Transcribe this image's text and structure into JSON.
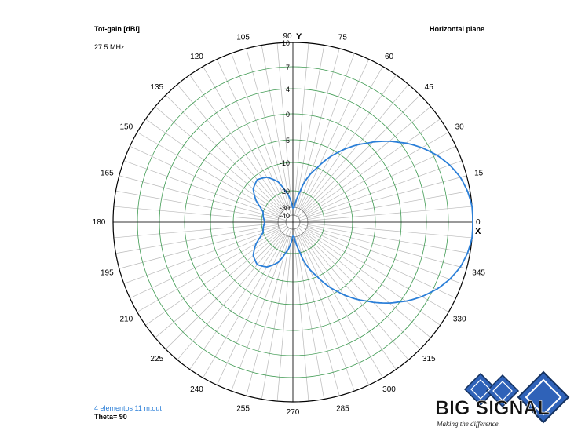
{
  "header": {
    "title": "Tot-gain [dBi]",
    "frequency": "27.5 MHz",
    "plane": "Horizontal plane"
  },
  "footer": {
    "file": "4 elementos 11 m.out",
    "theta": "Theta= 90"
  },
  "logo": {
    "text": "BIG SIGNAL",
    "tagline": "Making the difference."
  },
  "colors": {
    "grid_angle": "#b9b9b9",
    "grid_ring": "#3f9a52",
    "axis": "#000000",
    "pattern": "#2b7fd8",
    "footer_text": "#2b7fd8",
    "logo_blue": "#2f62b8"
  },
  "chart_data": {
    "type": "polar",
    "title": "Tot-gain [dBi]",
    "subtitle": "Horizontal plane",
    "frequency": "27.5 MHz",
    "axis_x_label": "X",
    "axis_y_label": "Y",
    "radial_ticks": [
      "10",
      "7",
      "4",
      "0",
      "-5",
      "-10",
      "-20",
      "-30",
      "-40"
    ],
    "angle_ticks": [
      0,
      15,
      30,
      45,
      60,
      75,
      90,
      105,
      120,
      135,
      150,
      165,
      180,
      195,
      210,
      225,
      240,
      255,
      270,
      285,
      300,
      315,
      330,
      345
    ],
    "grid": true,
    "series": [
      {
        "name": "4 elementos 11 m.out",
        "angle_deg": [
          0,
          5,
          10,
          15,
          20,
          25,
          30,
          35,
          40,
          45,
          50,
          55,
          60,
          65,
          70,
          75,
          80,
          85,
          90,
          100,
          110,
          120,
          130,
          140,
          150,
          155,
          160,
          165,
          170,
          175,
          180
        ],
        "gain_dbi": [
          10.2,
          10.0,
          9.7,
          9.2,
          8.4,
          7.4,
          6.1,
          4.6,
          2.8,
          0.8,
          -1.4,
          -3.8,
          -6.4,
          -9.4,
          -13.0,
          -17.5,
          -24.0,
          -30.0,
          -31.0,
          -22.0,
          -16.0,
          -12.8,
          -11.5,
          -12.8,
          -16.2,
          -18.3,
          -19.8,
          -20.4,
          -20.8,
          -21.5,
          -22.0
        ]
      }
    ]
  }
}
